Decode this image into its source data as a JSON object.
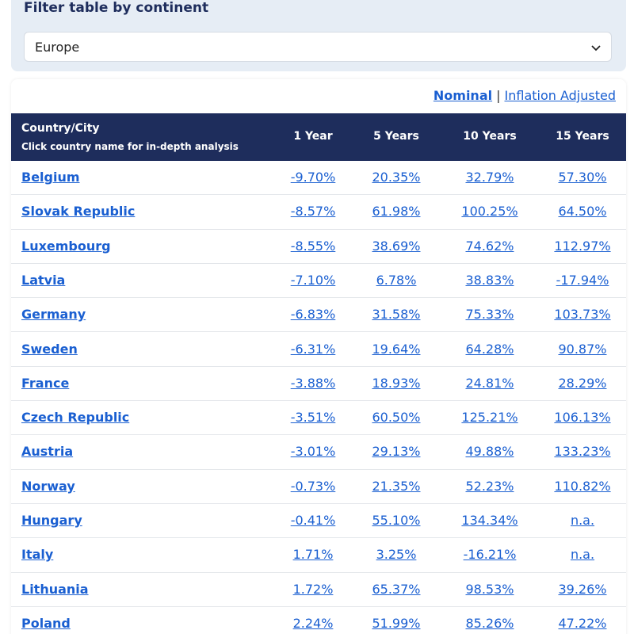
{
  "filter": {
    "title": "Filter table by continent",
    "selected": "Europe"
  },
  "view_toggle": {
    "options": [
      "Nominal",
      "Inflation Adjusted"
    ],
    "separator": "|"
  },
  "table": {
    "header": {
      "country": "Country/City",
      "note": "Click country name for in-depth analysis",
      "columns": [
        "1 Year",
        "5 Years",
        "10 Years",
        "15 Years"
      ]
    },
    "rows": [
      [
        "Belgium",
        "-9.70%",
        "20.35%",
        "32.79%",
        "57.30%"
      ],
      [
        "Slovak Republic",
        "-8.57%",
        "61.98%",
        "100.25%",
        "64.50%"
      ],
      [
        "Luxembourg",
        "-8.55%",
        "38.69%",
        "74.62%",
        "112.97%"
      ],
      [
        "Latvia",
        "-7.10%",
        "6.78%",
        "38.83%",
        "-17.94%"
      ],
      [
        "Germany",
        "-6.83%",
        "31.58%",
        "75.33%",
        "103.73%"
      ],
      [
        "Sweden",
        "-6.31%",
        "19.64%",
        "64.28%",
        "90.87%"
      ],
      [
        "France",
        "-3.88%",
        "18.93%",
        "24.81%",
        "28.29%"
      ],
      [
        "Czech Republic",
        "-3.51%",
        "60.50%",
        "125.21%",
        "106.13%"
      ],
      [
        "Austria",
        "-3.01%",
        "29.13%",
        "49.88%",
        "133.23%"
      ],
      [
        "Norway",
        "-0.73%",
        "21.35%",
        "52.23%",
        "110.82%"
      ],
      [
        "Hungary",
        "-0.41%",
        "55.10%",
        "134.34%",
        "n.a."
      ],
      [
        "Italy",
        "1.71%",
        "3.25%",
        "-16.21%",
        "n.a."
      ],
      [
        "Lithuania",
        "1.72%",
        "65.37%",
        "98.53%",
        "39.26%"
      ],
      [
        "Poland",
        "2.24%",
        "51.99%",
        "85.26%",
        "47.22%"
      ]
    ]
  }
}
